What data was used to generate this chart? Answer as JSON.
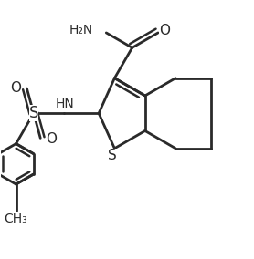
{
  "bg_color": "#ffffff",
  "line_color": "#2a2a2a",
  "line_width": 2.0,
  "figsize": [
    2.78,
    2.84
  ],
  "dpi": 100,
  "xlim": [
    0.0,
    5.6
  ],
  "ylim": [
    0.0,
    5.7
  ]
}
